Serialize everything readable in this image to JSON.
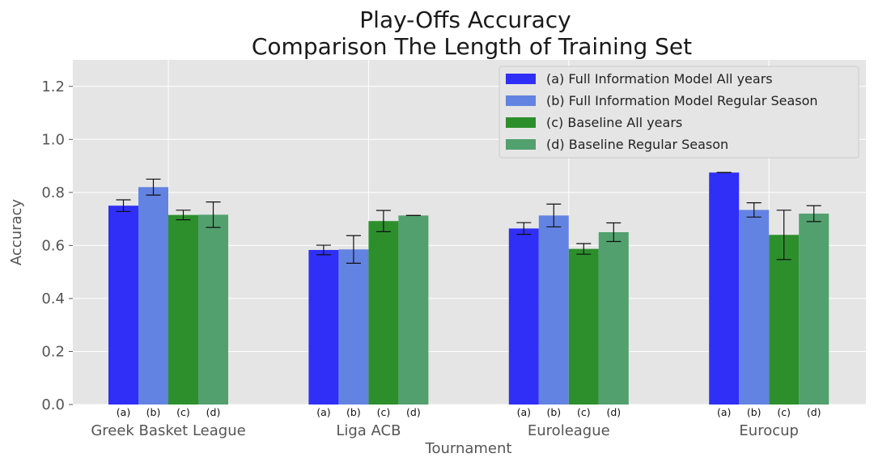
{
  "chart_data": {
    "type": "bar",
    "title": "Play-Offs Accuracy",
    "subtitle": "Comparison The Length of Training Set",
    "xlabel": "Tournament",
    "ylabel": "Accuracy",
    "ylim": [
      0,
      1.3
    ],
    "yticks": [
      "0.0",
      "0.2",
      "0.4",
      "0.6",
      "0.8",
      "1.0",
      "1.2"
    ],
    "categories": [
      "Greek Basket League",
      "Liga ACB",
      "Euroleague",
      "Eurocup"
    ],
    "grid": true,
    "legend_position": "top-right",
    "series": [
      {
        "name": "(a) Full Information Model All years",
        "short": "(a)",
        "color": "#2f2ff7",
        "values": [
          0.75,
          0.583,
          0.664,
          0.875
        ],
        "err": [
          0.022,
          0.018,
          0.022,
          0.0
        ]
      },
      {
        "name": "(b) Full Information Model Regular Season",
        "short": "(b)",
        "color": "#6283e2",
        "values": [
          0.82,
          0.585,
          0.713,
          0.734
        ],
        "err": [
          0.03,
          0.052,
          0.043,
          0.027
        ]
      },
      {
        "name": "(c) Baseline All years",
        "short": "(c)",
        "color": "#2c8f2c",
        "values": [
          0.715,
          0.692,
          0.587,
          0.64
        ],
        "err": [
          0.018,
          0.04,
          0.02,
          0.093
        ]
      },
      {
        "name": "(d) Baseline Regular Season",
        "short": "(d)",
        "color": "#52a06e",
        "values": [
          0.716,
          0.713,
          0.65,
          0.72
        ],
        "err": [
          0.048,
          0.0,
          0.035,
          0.03
        ]
      }
    ]
  }
}
